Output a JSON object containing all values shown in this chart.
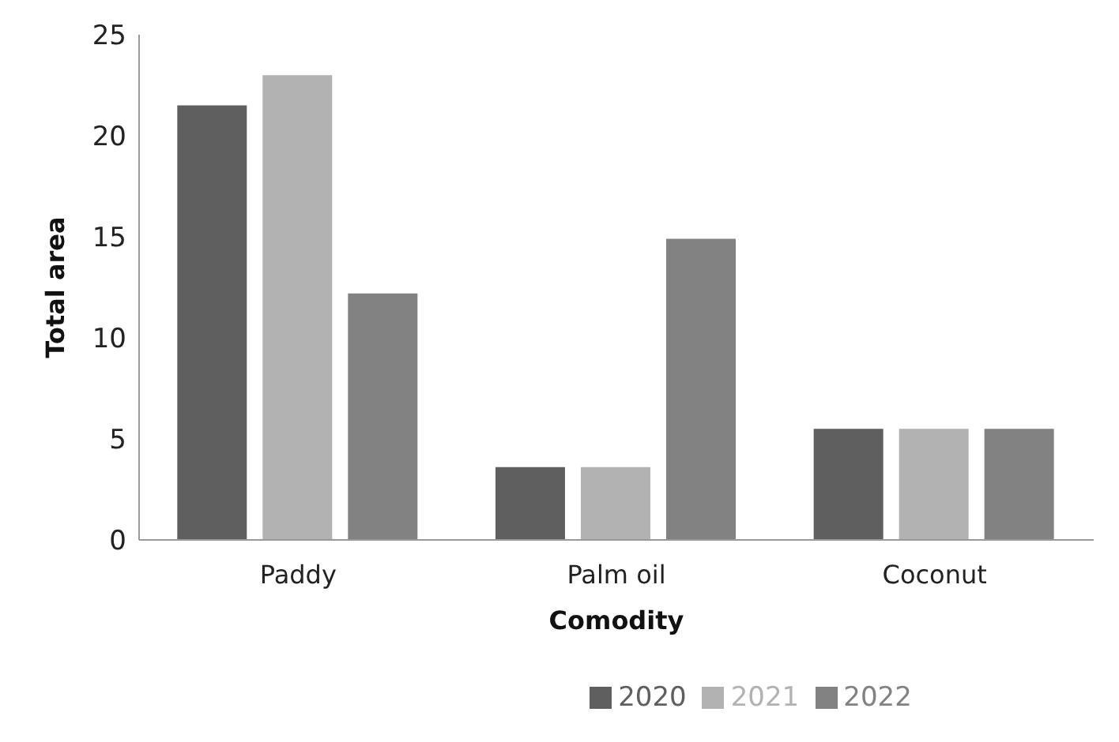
{
  "chart_data": {
    "type": "bar",
    "xlabel": "Comodity",
    "ylabel": "Total area",
    "categories": [
      "Paddy",
      "Palm oil",
      "Coconut"
    ],
    "series": [
      {
        "name": "2020",
        "color": "#5f5f5f",
        "values": [
          21.5,
          3.6,
          5.5
        ]
      },
      {
        "name": "2021",
        "color": "#b2b2b2",
        "values": [
          23,
          3.6,
          5.5
        ]
      },
      {
        "name": "2022",
        "color": "#828282",
        "values": [
          12.2,
          14.9,
          5.5
        ]
      }
    ],
    "ylim": [
      0,
      25
    ],
    "yticks": [
      0,
      5,
      10,
      15,
      20,
      25
    ],
    "grid": false,
    "legend": "bottom"
  }
}
